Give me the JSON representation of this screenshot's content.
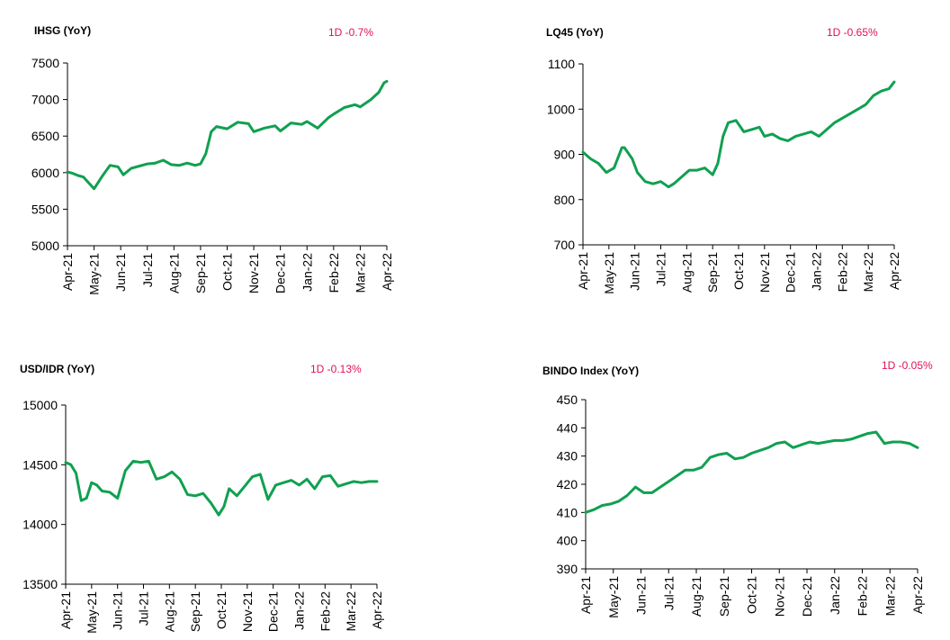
{
  "chart_data": [
    {
      "type": "line",
      "title": "IHSG (YoY)",
      "change_label": "1D -0.7%",
      "change_color": "#e0105a",
      "line_color": "#10a050",
      "ylim": [
        5000,
        7500
      ],
      "yticks": [
        5000,
        5500,
        6000,
        6500,
        7000,
        7500
      ],
      "xticks": [
        "Apr-21",
        "May-21",
        "Jun-21",
        "Jul-21",
        "Aug-21",
        "Sep-21",
        "Oct-21",
        "Nov-21",
        "Dec-21",
        "Jan-22",
        "Feb-22",
        "Mar-22",
        "Apr-22"
      ],
      "series": [
        {
          "x_months": [
            0,
            0.2,
            0.4,
            0.6,
            0.8,
            1.0,
            1.3,
            1.6,
            1.9,
            2.1,
            2.4,
            2.7,
            3.0,
            3.3,
            3.6,
            3.9,
            4.2,
            4.5,
            4.8,
            5.0,
            5.2,
            5.4,
            5.6,
            6.0,
            6.4,
            6.8,
            7.0,
            7.4,
            7.8,
            8.0,
            8.4,
            8.8,
            9.0,
            9.4,
            9.8,
            10.0,
            10.4,
            10.8,
            11.0,
            11.4,
            11.7,
            11.9,
            12.0
          ],
          "values": [
            6010,
            5990,
            5960,
            5940,
            5860,
            5780,
            5950,
            6100,
            6080,
            5970,
            6060,
            6090,
            6120,
            6130,
            6170,
            6110,
            6100,
            6130,
            6100,
            6120,
            6260,
            6560,
            6630,
            6600,
            6690,
            6670,
            6560,
            6610,
            6640,
            6570,
            6680,
            6660,
            6700,
            6610,
            6750,
            6800,
            6890,
            6930,
            6900,
            7000,
            7100,
            7230,
            7250
          ]
        }
      ]
    },
    {
      "type": "line",
      "title": "LQ45 (YoY)",
      "change_label": "1D -0.65%",
      "change_color": "#e0105a",
      "line_color": "#10a050",
      "ylim": [
        700,
        1100
      ],
      "yticks": [
        700,
        800,
        900,
        1000,
        1100
      ],
      "xticks": [
        "Apr-21",
        "May-21",
        "Jun-21",
        "Jul-21",
        "Aug-21",
        "Sep-21",
        "Oct-21",
        "Nov-21",
        "Dec-21",
        "Jan-22",
        "Feb-22",
        "Mar-22",
        "Apr-22"
      ],
      "series": [
        {
          "x_months": [
            0,
            0.3,
            0.6,
            0.9,
            1.2,
            1.5,
            1.6,
            1.9,
            2.1,
            2.4,
            2.7,
            3.0,
            3.3,
            3.5,
            3.8,
            4.1,
            4.4,
            4.7,
            5.0,
            5.2,
            5.4,
            5.6,
            5.9,
            6.2,
            6.5,
            6.8,
            7.0,
            7.3,
            7.6,
            7.9,
            8.2,
            8.5,
            8.8,
            9.1,
            9.4,
            9.7,
            10.0,
            10.3,
            10.6,
            10.9,
            11.2,
            11.5,
            11.8,
            12.0
          ],
          "values": [
            905,
            890,
            880,
            860,
            870,
            915,
            915,
            890,
            860,
            840,
            835,
            840,
            828,
            835,
            850,
            865,
            865,
            870,
            855,
            880,
            940,
            970,
            975,
            950,
            955,
            960,
            940,
            945,
            935,
            930,
            940,
            945,
            950,
            940,
            955,
            970,
            980,
            990,
            1000,
            1010,
            1030,
            1040,
            1045,
            1060
          ]
        }
      ]
    },
    {
      "type": "line",
      "title": "USD/IDR  (YoY)",
      "change_label": "1D -0.13%",
      "change_color": "#e0105a",
      "line_color": "#10a050",
      "ylim": [
        13500,
        15000
      ],
      "yticks": [
        13500,
        14000,
        14500,
        15000
      ],
      "xticks": [
        "Apr-21",
        "May-21",
        "Jun-21",
        "Jul-21",
        "Aug-21",
        "Sep-21",
        "Oct-21",
        "Nov-21",
        "Dec-21",
        "Jan-22",
        "Feb-22",
        "Mar-22",
        "Apr-22"
      ],
      "series": [
        {
          "x_months": [
            0,
            0.2,
            0.4,
            0.6,
            0.8,
            1.0,
            1.2,
            1.4,
            1.7,
            2.0,
            2.3,
            2.6,
            2.9,
            3.2,
            3.5,
            3.8,
            4.1,
            4.4,
            4.7,
            5.0,
            5.3,
            5.6,
            5.9,
            6.1,
            6.3,
            6.6,
            6.9,
            7.2,
            7.5,
            7.8,
            8.1,
            8.4,
            8.7,
            9.0,
            9.3,
            9.6,
            9.9,
            10.2,
            10.5,
            10.8,
            11.1,
            11.4,
            11.7,
            12.0
          ],
          "values": [
            14520,
            14500,
            14430,
            14200,
            14220,
            14350,
            14330,
            14280,
            14270,
            14220,
            14450,
            14530,
            14520,
            14530,
            14380,
            14400,
            14440,
            14380,
            14250,
            14240,
            14260,
            14180,
            14080,
            14150,
            14300,
            14240,
            14320,
            14400,
            14420,
            14210,
            14330,
            14350,
            14370,
            14330,
            14380,
            14300,
            14400,
            14410,
            14320,
            14340,
            14360,
            14350,
            14360,
            14360
          ]
        }
      ]
    },
    {
      "type": "line",
      "title": "BINDO Index (YoY)",
      "change_label": "1D -0.05%",
      "change_color": "#e0105a",
      "line_color": "#10a050",
      "ylim": [
        390,
        450
      ],
      "yticks": [
        390,
        400,
        410,
        420,
        430,
        440,
        450
      ],
      "xticks": [
        "Apr-21",
        "May-21",
        "Jun-21",
        "Jul-21",
        "Aug-21",
        "Sep-21",
        "Oct-21",
        "Nov-21",
        "Dec-21",
        "Jan-22",
        "Feb-22",
        "Mar-22",
        "Apr-22"
      ],
      "series": [
        {
          "x_months": [
            0,
            0.3,
            0.6,
            0.9,
            1.2,
            1.5,
            1.8,
            2.1,
            2.4,
            2.7,
            3.0,
            3.3,
            3.6,
            3.9,
            4.2,
            4.5,
            4.8,
            5.1,
            5.4,
            5.7,
            6.0,
            6.3,
            6.6,
            6.9,
            7.2,
            7.5,
            7.8,
            8.1,
            8.4,
            8.7,
            9.0,
            9.3,
            9.6,
            9.9,
            10.2,
            10.5,
            10.8,
            11.1,
            11.4,
            11.7,
            12.0
          ],
          "values": [
            410,
            411,
            412.5,
            413,
            414,
            416,
            419,
            417,
            417,
            419,
            421,
            423,
            425,
            425,
            426,
            429.5,
            430.5,
            431,
            429,
            429.5,
            431,
            432,
            433,
            434.5,
            435,
            433,
            434,
            435,
            434.5,
            435,
            435.5,
            435.5,
            436,
            437,
            438,
            438.5,
            434.5,
            435,
            435,
            434.5,
            433
          ]
        }
      ]
    }
  ]
}
